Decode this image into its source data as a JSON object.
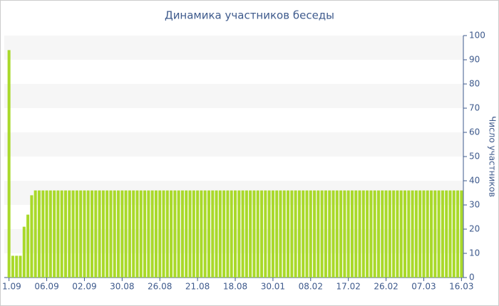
{
  "chart_data": {
    "type": "bar",
    "title": "Динамика участников беседы",
    "y_label": "Число участников",
    "categories": [
      "1.09",
      null,
      null,
      null,
      null,
      null,
      null,
      null,
      null,
      null,
      "06.09",
      null,
      null,
      null,
      null,
      null,
      null,
      null,
      null,
      null,
      "02.09",
      null,
      null,
      null,
      null,
      null,
      null,
      null,
      null,
      null,
      "30.08",
      null,
      null,
      null,
      null,
      null,
      null,
      null,
      null,
      null,
      "26.08",
      null,
      null,
      null,
      null,
      null,
      null,
      null,
      null,
      null,
      "21.08",
      null,
      null,
      null,
      null,
      null,
      null,
      null,
      null,
      null,
      "18.08",
      null,
      null,
      null,
      null,
      null,
      null,
      null,
      null,
      null,
      "30.01",
      null,
      null,
      null,
      null,
      null,
      null,
      null,
      null,
      null,
      "08.02",
      null,
      null,
      null,
      null,
      null,
      null,
      null,
      null,
      null,
      "17.02",
      null,
      null,
      null,
      null,
      null,
      null,
      null,
      null,
      null,
      "26.02",
      null,
      null,
      null,
      null,
      null,
      null,
      null,
      null,
      null,
      "07.03",
      null,
      null,
      null,
      null,
      null,
      null,
      null,
      null,
      null,
      "16.03"
    ],
    "values": [
      94,
      9,
      9,
      9,
      21,
      26,
      34,
      36,
      36,
      36,
      36,
      36,
      36,
      36,
      36,
      36,
      36,
      36,
      36,
      36,
      36,
      36,
      36,
      36,
      36,
      36,
      36,
      36,
      36,
      36,
      36,
      36,
      36,
      36,
      36,
      36,
      36,
      36,
      36,
      36,
      36,
      36,
      36,
      36,
      36,
      36,
      36,
      36,
      36,
      36,
      36,
      36,
      36,
      36,
      36,
      36,
      36,
      36,
      36,
      36,
      36,
      36,
      36,
      36,
      36,
      36,
      36,
      36,
      36,
      36,
      36,
      36,
      36,
      36,
      36,
      36,
      36,
      36,
      36,
      36,
      36,
      36,
      36,
      36,
      36,
      36,
      36,
      36,
      36,
      36,
      36,
      36,
      36,
      36,
      36,
      36,
      36,
      36,
      36,
      36,
      36,
      36,
      36,
      36,
      36,
      36,
      36,
      36,
      36,
      36,
      36,
      36,
      36,
      36,
      36,
      36,
      36,
      36,
      36,
      36,
      36
    ],
    "color": "#a9d92a",
    "ylim": [
      0,
      100
    ],
    "yticks": [
      0,
      10,
      20,
      30,
      40,
      50,
      60,
      70,
      80,
      90,
      100
    ],
    "grid": true
  }
}
